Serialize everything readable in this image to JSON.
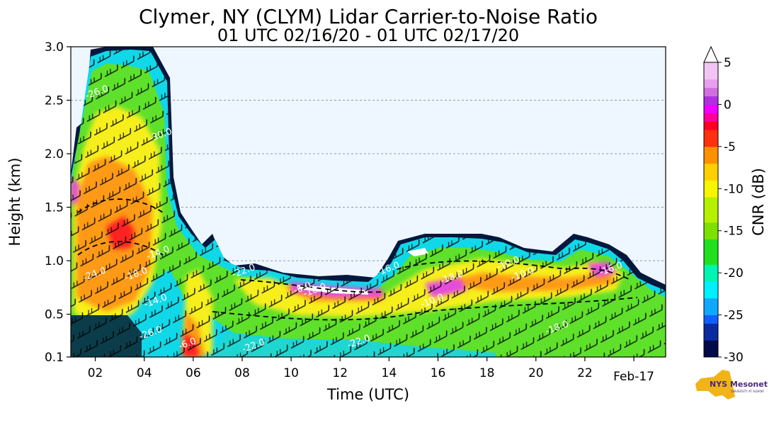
{
  "chart_data": {
    "type": "heatmap",
    "title": "Clymer, NY (CLYM) Lidar Carrier-to-Noise Ratio",
    "subtitle": "01 UTC 02/16/20 - 01 UTC 02/17/20",
    "xlabel": "Time (UTC)",
    "ylabel": "Height (km)",
    "xlim": [
      1.0,
      25.3
    ],
    "ylim": [
      0.1,
      3.0
    ],
    "x_ticks": [
      {
        "value": 2,
        "label": "02"
      },
      {
        "value": 4,
        "label": "04"
      },
      {
        "value": 6,
        "label": "06"
      },
      {
        "value": 8,
        "label": "08"
      },
      {
        "value": 10,
        "label": "10"
      },
      {
        "value": 12,
        "label": "12"
      },
      {
        "value": 14,
        "label": "14"
      },
      {
        "value": 16,
        "label": "16"
      },
      {
        "value": 18,
        "label": "18"
      },
      {
        "value": 20,
        "label": "20"
      },
      {
        "value": 22,
        "label": "22"
      },
      {
        "value": 24,
        "label": "Feb-17"
      }
    ],
    "y_ticks": [
      {
        "value": 0.1,
        "label": "0.1"
      },
      {
        "value": 0.5,
        "label": "0.5"
      },
      {
        "value": 1.0,
        "label": "1.0"
      },
      {
        "value": 1.5,
        "label": "1.5"
      },
      {
        "value": 2.0,
        "label": "2.0"
      },
      {
        "value": 2.5,
        "label": "2.5"
      },
      {
        "value": 3.0,
        "label": "3.0"
      }
    ],
    "gridlines_y": [
      0.5,
      1.0,
      1.5,
      2.0,
      2.5
    ],
    "colorbar": {
      "label": "CNR (dB)",
      "min": -30,
      "max": 5,
      "step": 1,
      "extend": "max",
      "ticks": [
        {
          "value": 5,
          "label": "5"
        },
        {
          "value": 0,
          "label": "0"
        },
        {
          "value": -5,
          "label": "-5"
        },
        {
          "value": -10,
          "label": "-10"
        },
        {
          "value": -15,
          "label": "-15"
        },
        {
          "value": -20,
          "label": "-20"
        },
        {
          "value": -25,
          "label": "-25"
        },
        {
          "value": -30,
          "label": "-30"
        }
      ]
    },
    "contour_labels": [
      {
        "x": 2.1,
        "y": 2.55,
        "text": "-26.0"
      },
      {
        "x": 2.0,
        "y": 0.85,
        "text": "-24.0"
      },
      {
        "x": 4.7,
        "y": 2.15,
        "text": "-30.0"
      },
      {
        "x": 4.6,
        "y": 1.05,
        "text": "-14.0"
      },
      {
        "x": 4.5,
        "y": 0.6,
        "text": "-14.0"
      },
      {
        "x": 3.7,
        "y": 0.85,
        "text": "-18.0"
      },
      {
        "x": 4.3,
        "y": 0.3,
        "text": "-26.0"
      },
      {
        "x": 5.8,
        "y": 0.2,
        "text": "-6.0"
      },
      {
        "x": 8.1,
        "y": 0.88,
        "text": "-22.0"
      },
      {
        "x": 10.5,
        "y": 0.72,
        "text": "-6.0"
      },
      {
        "x": 11.0,
        "y": 0.7,
        "text": "-10.0"
      },
      {
        "x": 8.5,
        "y": 0.18,
        "text": "-22.0"
      },
      {
        "x": 12.8,
        "y": 0.22,
        "text": "-22.0"
      },
      {
        "x": 14.0,
        "y": 0.9,
        "text": "-16.0"
      },
      {
        "x": 15.8,
        "y": 0.6,
        "text": "-10.0"
      },
      {
        "x": 16.6,
        "y": 0.82,
        "text": "-18.0"
      },
      {
        "x": 18.9,
        "y": 0.95,
        "text": "-10.0"
      },
      {
        "x": 19.5,
        "y": 0.85,
        "text": "-10.0"
      },
      {
        "x": 20.9,
        "y": 0.35,
        "text": "-18.0"
      },
      {
        "x": 23.1,
        "y": 0.9,
        "text": "-16.0"
      }
    ],
    "logo": {
      "text": "NYS Mesonet",
      "subtext": "UNIVERSITY AT ALBANY"
    }
  }
}
